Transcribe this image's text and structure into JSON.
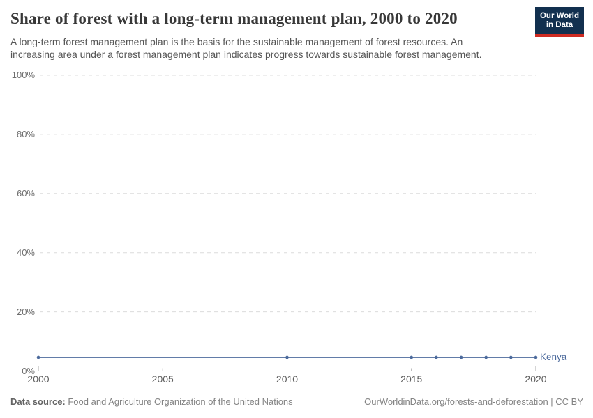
{
  "header": {
    "logo_line1": "Our World",
    "logo_line2": "in Data"
  },
  "chart_data": {
    "type": "line",
    "title": "Share of forest with a long-term management plan, 2000 to 2020",
    "subtitle_lines": [
      "A long-term forest management plan is the basis for the sustainable management of forest resources. An",
      "increasing area under a forest management plan indicates progress towards sustainable forest management."
    ],
    "series": [
      {
        "name": "Kenya",
        "color": "#4C6A9C",
        "x": [
          2000,
          2010,
          2015,
          2016,
          2017,
          2018,
          2019,
          2020
        ],
        "values": [
          4.6,
          4.6,
          4.6,
          4.6,
          4.6,
          4.6,
          4.6,
          4.6
        ]
      }
    ],
    "xlim": [
      2000,
      2020
    ],
    "ylim": [
      0,
      100
    ],
    "xticks": [
      2000,
      2005,
      2010,
      2015,
      2020
    ],
    "yticks": [
      0,
      20,
      40,
      60,
      80,
      100
    ],
    "ytick_suffix": "%",
    "grid": "horizontal-dashed",
    "legend": "end-of-line-label",
    "gridline_color": "#dcdcdc",
    "axis_color": "#a8a8a8"
  },
  "footer": {
    "source_label": "Data source:",
    "source_rest": " Food and Agriculture Organization of the United Nations",
    "link_text": "OurWorldinData.org/forests-and-deforestation | CC BY"
  }
}
